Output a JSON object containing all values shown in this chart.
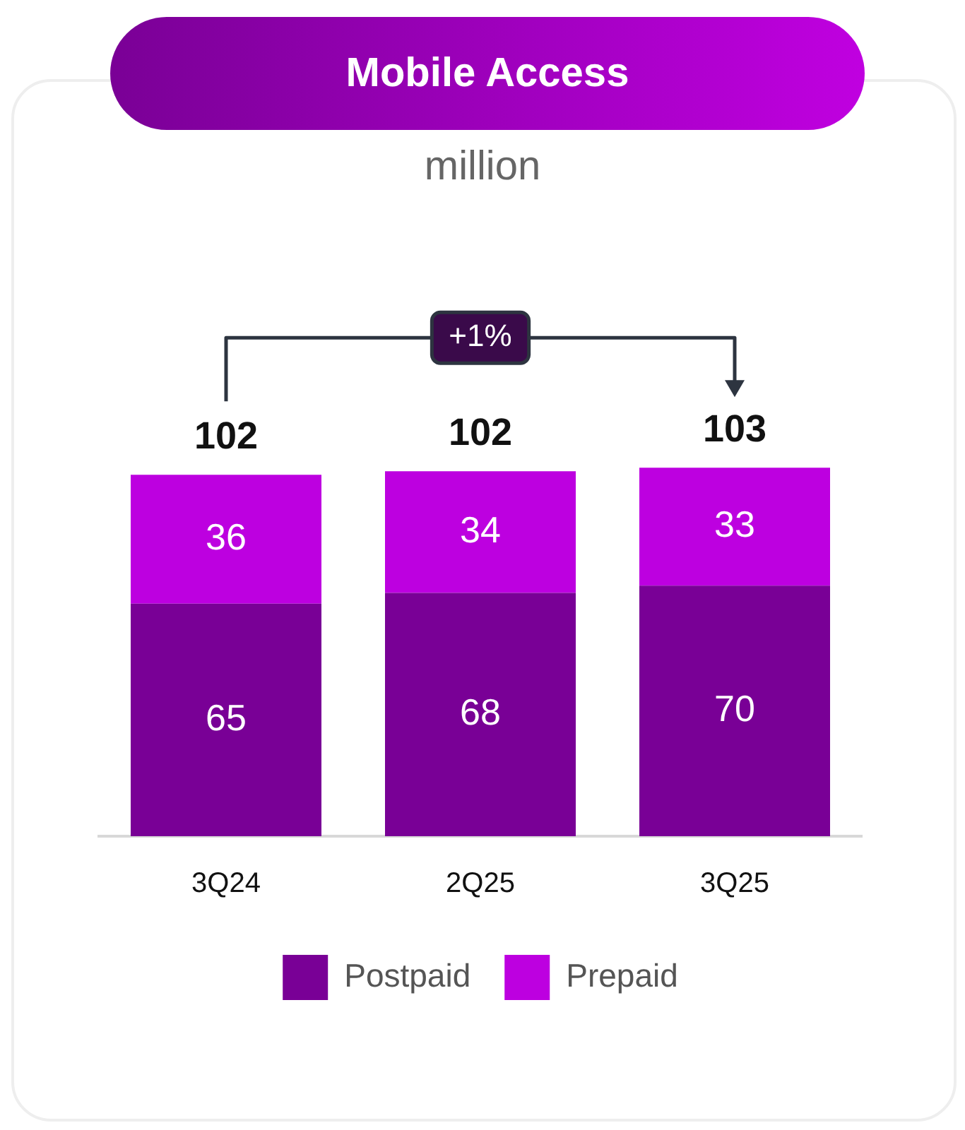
{
  "chart_data": {
    "type": "bar",
    "title": "Mobile Access",
    "subtitle": "million",
    "categories": [
      "3Q24",
      "2Q25",
      "3Q25"
    ],
    "stacked": true,
    "data_labels": true,
    "legend": "bottom",
    "series": [
      {
        "name": "Postpaid",
        "color": "#790096",
        "values": [
          65,
          68,
          70
        ]
      },
      {
        "name": "Prepaid",
        "color": "#bd00e0",
        "values": [
          36,
          34,
          33
        ]
      }
    ],
    "totals": [
      "102",
      "102",
      "103"
    ],
    "annotations": [
      "+1%"
    ]
  }
}
